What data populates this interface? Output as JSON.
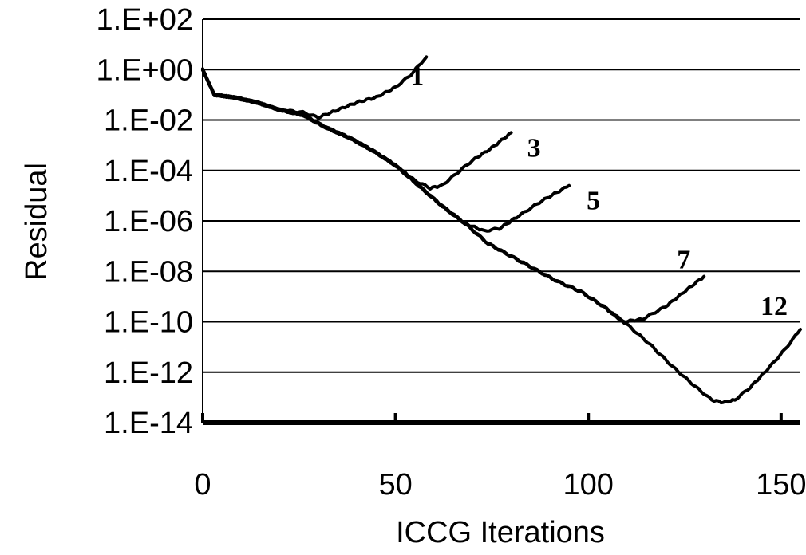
{
  "chart_data": {
    "type": "line",
    "title": "",
    "xlabel": "ICCG Iterations",
    "ylabel": "Residual",
    "xlim": [
      0,
      155
    ],
    "ylim_log10": [
      -14,
      2
    ],
    "yscale": "log",
    "x_ticks": [
      0,
      50,
      100,
      150
    ],
    "x_tick_labels": [
      "0",
      "50",
      "100",
      "150"
    ],
    "y_ticks": [
      2,
      0,
      -2,
      -4,
      -6,
      -8,
      -10,
      -12,
      -14
    ],
    "y_tick_labels": [
      "1.E+02",
      "1.E+00",
      "1.E-02",
      "1.E-04",
      "1.E-06",
      "1.E-08",
      "1.E-10",
      "1.E-12",
      "1.E-14"
    ],
    "grid": "horizontal",
    "series": [
      {
        "name": "1",
        "x": [
          0,
          3,
          8,
          14,
          20,
          26,
          30,
          35,
          40,
          45,
          50,
          54,
          58
        ],
        "log10_y": [
          0.0,
          -1.0,
          -1.1,
          -1.3,
          -1.6,
          -1.7,
          -1.9,
          -1.6,
          -1.3,
          -1.1,
          -0.7,
          -0.2,
          0.5
        ]
      },
      {
        "name": "3",
        "x": [
          0,
          3,
          8,
          14,
          20,
          26,
          32,
          38,
          44,
          50,
          55,
          59,
          62,
          66,
          70,
          75,
          80
        ],
        "log10_y": [
          0.0,
          -1.0,
          -1.1,
          -1.3,
          -1.6,
          -1.8,
          -2.3,
          -2.7,
          -3.2,
          -3.8,
          -4.4,
          -4.7,
          -4.6,
          -4.1,
          -3.6,
          -3.1,
          -2.5
        ]
      },
      {
        "name": "5",
        "x": [
          0,
          3,
          8,
          14,
          20,
          26,
          32,
          38,
          44,
          50,
          56,
          62,
          68,
          73,
          77,
          82,
          88,
          95
        ],
        "log10_y": [
          0.0,
          -1.0,
          -1.1,
          -1.3,
          -1.6,
          -1.8,
          -2.3,
          -2.7,
          -3.2,
          -3.8,
          -4.6,
          -5.4,
          -6.1,
          -6.4,
          -6.3,
          -5.8,
          -5.2,
          -4.6
        ]
      },
      {
        "name": "7",
        "x": [
          0,
          3,
          8,
          14,
          20,
          26,
          32,
          38,
          44,
          50,
          56,
          62,
          68,
          74,
          80,
          86,
          92,
          98,
          104,
          109,
          114,
          120,
          125,
          130
        ],
        "log10_y": [
          0.0,
          -1.0,
          -1.1,
          -1.3,
          -1.6,
          -1.8,
          -2.3,
          -2.7,
          -3.2,
          -3.8,
          -4.6,
          -5.4,
          -6.1,
          -6.9,
          -7.4,
          -7.9,
          -8.4,
          -8.8,
          -9.4,
          -10.0,
          -9.9,
          -9.4,
          -8.8,
          -8.2
        ]
      },
      {
        "name": "12",
        "x": [
          0,
          3,
          8,
          14,
          20,
          26,
          32,
          38,
          44,
          50,
          56,
          62,
          68,
          74,
          80,
          86,
          92,
          98,
          104,
          110,
          116,
          122,
          128,
          132,
          135,
          138,
          142,
          147,
          151,
          155
        ],
        "log10_y": [
          0.0,
          -1.0,
          -1.1,
          -1.3,
          -1.6,
          -1.8,
          -2.3,
          -2.7,
          -3.2,
          -3.8,
          -4.6,
          -5.4,
          -6.1,
          -6.9,
          -7.4,
          -7.9,
          -8.4,
          -8.8,
          -9.4,
          -10.1,
          -10.9,
          -11.8,
          -12.6,
          -13.1,
          -13.2,
          -13.1,
          -12.6,
          -11.8,
          -11.1,
          -10.3
        ]
      }
    ]
  }
}
